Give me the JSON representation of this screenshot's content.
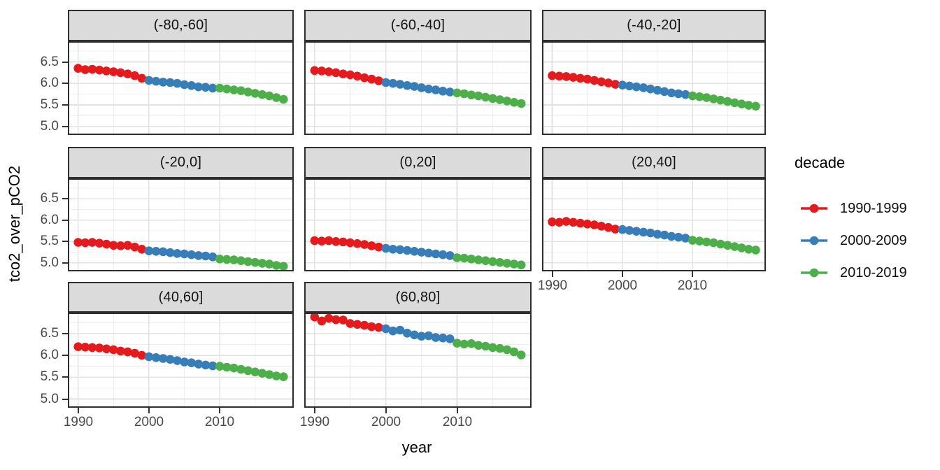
{
  "figure": {
    "y_axis_title": "tco2_over_pCO2",
    "x_axis_title": "year",
    "y_tick_labels": [
      "5.0",
      "5.5",
      "6.0",
      "6.5"
    ],
    "x_tick_labels": [
      "1990",
      "2000",
      "2010"
    ]
  },
  "legend": {
    "title": "decade",
    "entries": [
      {
        "label": "1990-1999",
        "color": "#E41A1C"
      },
      {
        "label": "2000-2009",
        "color": "#377EB8"
      },
      {
        "label": "2010-2019",
        "color": "#4DAF4A"
      }
    ]
  },
  "chart_data": {
    "type": "scatter",
    "title": "",
    "xlabel": "year",
    "ylabel": "tco2_over_pCO2",
    "facet_variable": "latitude_band",
    "legend_position": "right",
    "grid": "major+minor",
    "xlim": [
      1988.55,
      2020.45
    ],
    "ylim": [
      4.8,
      6.98
    ],
    "x_major_ticks": [
      1990,
      2000,
      2010
    ],
    "x_minor_ticks": [
      1995,
      2005,
      2015
    ],
    "y_major_ticks": [
      5.0,
      5.5,
      6.0,
      6.5
    ],
    "y_minor_ticks": [
      5.25,
      5.75,
      6.25,
      6.75
    ],
    "x": [
      1990,
      1991,
      1992,
      1993,
      1994,
      1995,
      1996,
      1997,
      1998,
      1999,
      2000,
      2001,
      2002,
      2003,
      2004,
      2005,
      2006,
      2007,
      2008,
      2009,
      2010,
      2011,
      2012,
      2013,
      2014,
      2015,
      2016,
      2017,
      2018,
      2019
    ],
    "decades": [
      {
        "name": "1990-1999",
        "start": 1990,
        "end": 1999,
        "color": "#E41A1C"
      },
      {
        "name": "2000-2009",
        "start": 2000,
        "end": 2009,
        "color": "#377EB8"
      },
      {
        "name": "2010-2019",
        "start": 2010,
        "end": 2019,
        "color": "#4DAF4A"
      }
    ],
    "facets": [
      {
        "label": "(-80,-60]",
        "values": [
          6.35,
          6.32,
          6.33,
          6.31,
          6.29,
          6.27,
          6.25,
          6.22,
          6.18,
          6.12,
          6.07,
          6.05,
          6.03,
          6.02,
          6.0,
          5.97,
          5.95,
          5.92,
          5.91,
          5.89,
          5.89,
          5.87,
          5.85,
          5.83,
          5.8,
          5.77,
          5.74,
          5.71,
          5.67,
          5.63
        ]
      },
      {
        "label": "(-60,-40]",
        "values": [
          6.3,
          6.29,
          6.27,
          6.25,
          6.22,
          6.2,
          6.17,
          6.13,
          6.1,
          6.06,
          6.02,
          6.0,
          5.98,
          5.95,
          5.93,
          5.9,
          5.87,
          5.85,
          5.82,
          5.8,
          5.78,
          5.76,
          5.73,
          5.71,
          5.68,
          5.65,
          5.62,
          5.59,
          5.56,
          5.53
        ]
      },
      {
        "label": "(-40,-20]",
        "values": [
          6.18,
          6.17,
          6.16,
          6.14,
          6.12,
          6.1,
          6.07,
          6.04,
          6.01,
          5.98,
          5.96,
          5.94,
          5.92,
          5.9,
          5.87,
          5.84,
          5.81,
          5.78,
          5.76,
          5.74,
          5.71,
          5.69,
          5.67,
          5.64,
          5.61,
          5.58,
          5.55,
          5.52,
          5.49,
          5.47
        ]
      },
      {
        "label": "(-20,0]",
        "values": [
          5.48,
          5.47,
          5.48,
          5.46,
          5.44,
          5.41,
          5.4,
          5.41,
          5.37,
          5.32,
          5.28,
          5.27,
          5.26,
          5.24,
          5.22,
          5.21,
          5.19,
          5.17,
          5.16,
          5.14,
          5.09,
          5.08,
          5.07,
          5.05,
          5.03,
          5.01,
          4.99,
          4.97,
          4.94,
          4.92
        ]
      },
      {
        "label": "(0,20]",
        "values": [
          5.52,
          5.51,
          5.52,
          5.5,
          5.49,
          5.47,
          5.45,
          5.43,
          5.4,
          5.37,
          5.34,
          5.32,
          5.31,
          5.29,
          5.27,
          5.25,
          5.23,
          5.21,
          5.19,
          5.17,
          5.12,
          5.11,
          5.09,
          5.07,
          5.05,
          5.03,
          5.01,
          4.99,
          4.97,
          4.95
        ]
      },
      {
        "label": "(20,40]",
        "values": [
          5.96,
          5.95,
          5.97,
          5.95,
          5.93,
          5.91,
          5.89,
          5.86,
          5.83,
          5.79,
          5.78,
          5.76,
          5.74,
          5.72,
          5.7,
          5.67,
          5.65,
          5.62,
          5.6,
          5.58,
          5.53,
          5.51,
          5.49,
          5.47,
          5.44,
          5.41,
          5.38,
          5.35,
          5.32,
          5.3
        ]
      },
      {
        "label": "(40,60]",
        "values": [
          6.2,
          6.19,
          6.18,
          6.17,
          6.15,
          6.13,
          6.1,
          6.08,
          6.05,
          6.0,
          5.97,
          5.95,
          5.93,
          5.91,
          5.88,
          5.85,
          5.83,
          5.8,
          5.78,
          5.76,
          5.75,
          5.73,
          5.71,
          5.68,
          5.65,
          5.62,
          5.59,
          5.56,
          5.53,
          5.51
        ]
      },
      {
        "label": "(60,80]",
        "values": [
          6.88,
          6.79,
          6.85,
          6.82,
          6.81,
          6.73,
          6.71,
          6.69,
          6.66,
          6.64,
          6.61,
          6.56,
          6.58,
          6.51,
          6.47,
          6.44,
          6.45,
          6.41,
          6.4,
          6.38,
          6.28,
          6.26,
          6.27,
          6.23,
          6.21,
          6.18,
          6.16,
          6.13,
          6.08,
          6.01
        ]
      }
    ]
  }
}
